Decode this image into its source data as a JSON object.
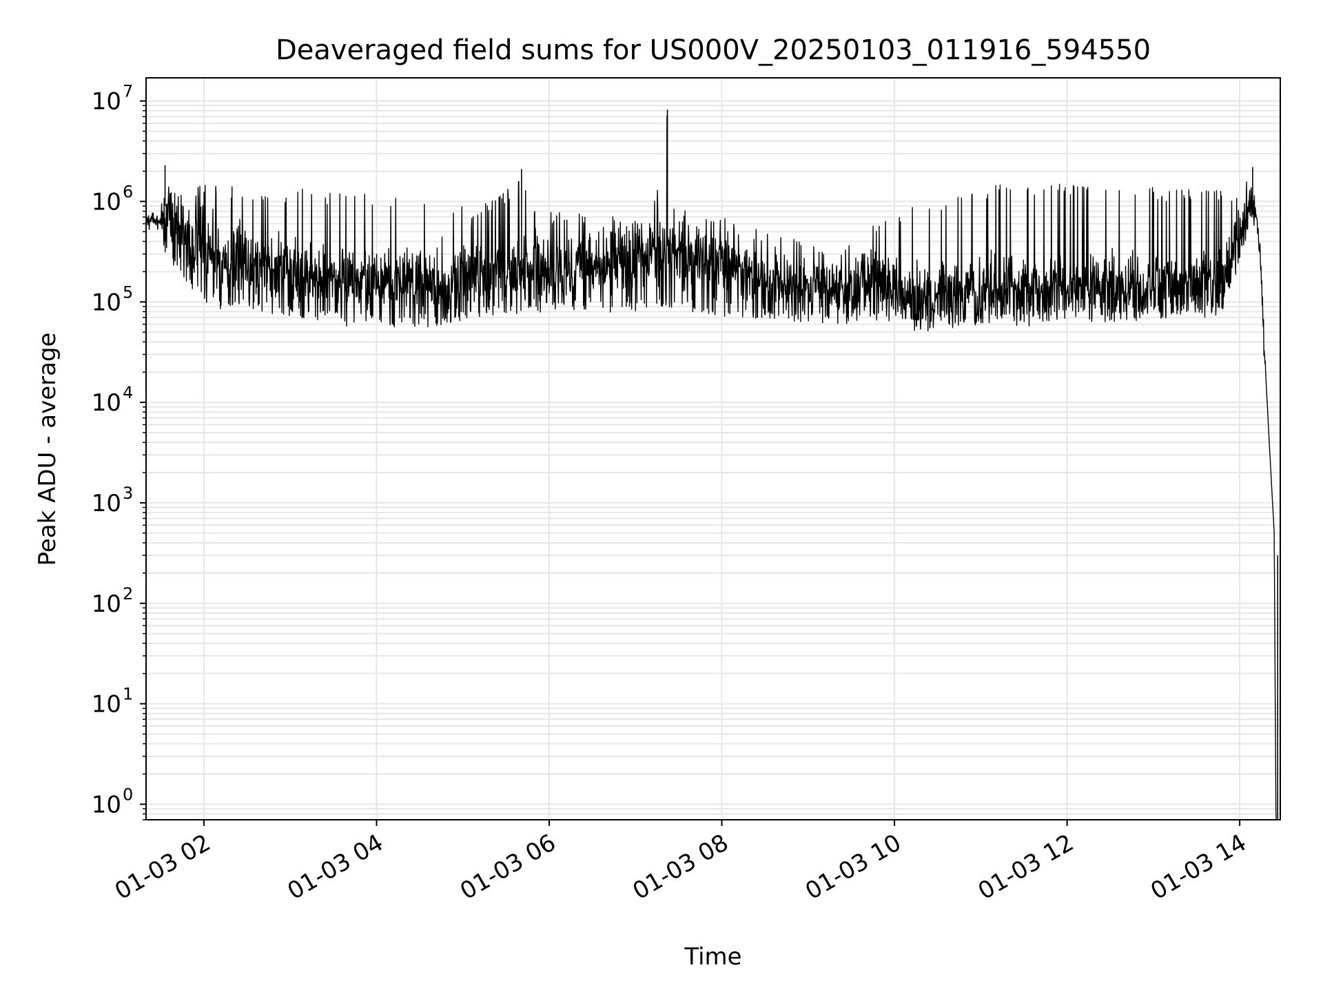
{
  "chart_data": {
    "type": "line",
    "title": "Deaveraged field sums for US000V_20250103_011916_594550",
    "xlabel": "Time",
    "ylabel": "Peak ADU - average",
    "yscale": "log",
    "ylim": [
      0.7,
      17000000
    ],
    "xlim_hours": [
      1.33,
      14.47
    ],
    "grid": true,
    "line_color": "#000000",
    "grid_color": "#e6e6e6",
    "x_ticks": [
      {
        "hour": 2,
        "label": "01-03 02"
      },
      {
        "hour": 4,
        "label": "01-03 04"
      },
      {
        "hour": 6,
        "label": "01-03 06"
      },
      {
        "hour": 8,
        "label": "01-03 08"
      },
      {
        "hour": 10,
        "label": "01-03 10"
      },
      {
        "hour": 12,
        "label": "01-03 12"
      },
      {
        "hour": 14,
        "label": "01-03 14"
      }
    ],
    "y_ticks": [
      {
        "value": 1,
        "base": "10",
        "exp": "0"
      },
      {
        "value": 10,
        "base": "10",
        "exp": "1"
      },
      {
        "value": 100,
        "base": "10",
        "exp": "2"
      },
      {
        "value": 1000,
        "base": "10",
        "exp": "3"
      },
      {
        "value": 10000,
        "base": "10",
        "exp": "4"
      },
      {
        "value": 100000,
        "base": "10",
        "exp": "5"
      },
      {
        "value": 1000000,
        "base": "10",
        "exp": "6"
      },
      {
        "value": 10000000,
        "base": "10",
        "exp": "7"
      }
    ],
    "series": [
      {
        "x_hours": [
          1.33,
          1.4,
          1.5,
          1.55,
          1.6,
          1.7,
          1.8,
          1.9,
          2.0,
          2.2,
          2.4,
          2.6,
          2.8,
          3.0,
          3.2,
          3.4,
          3.6,
          3.8,
          4.0,
          4.2,
          4.4,
          4.6,
          4.8,
          5.0,
          5.2,
          5.4,
          5.6,
          5.68,
          5.8,
          6.0,
          6.2,
          6.4,
          6.6,
          6.8,
          7.0,
          7.2,
          7.37,
          7.4,
          7.6,
          7.8,
          8.0,
          8.2,
          8.4,
          8.6,
          8.8,
          9.0,
          9.2,
          9.4,
          9.6,
          9.8,
          10.0,
          10.2,
          10.4,
          10.6,
          10.8,
          11.0,
          11.2,
          11.4,
          11.6,
          11.8,
          12.0,
          12.2,
          12.4,
          12.6,
          12.8,
          13.0,
          13.2,
          13.4,
          13.6,
          13.8,
          14.0,
          14.15,
          14.2,
          14.25,
          14.3,
          14.35,
          14.4,
          14.42,
          14.44
        ],
        "low": [
          500000,
          550000,
          500000,
          300000,
          250000,
          200000,
          150000,
          120000,
          100000,
          90000,
          85000,
          80000,
          75000,
          70000,
          68000,
          65000,
          62000,
          60000,
          58000,
          56000,
          55000,
          52000,
          60000,
          65000,
          70000,
          72000,
          75000,
          80000,
          78000,
          80000,
          82000,
          85000,
          80000,
          78000,
          80000,
          85000,
          90000,
          85000,
          80000,
          75000,
          72000,
          70000,
          68000,
          66000,
          64000,
          62000,
          60000,
          60000,
          62000,
          65000,
          60000,
          52000,
          50000,
          52000,
          55000,
          58000,
          60000,
          62000,
          63000,
          64000,
          65000,
          62000,
          60000,
          62000,
          64000,
          65000,
          68000,
          70000,
          70000,
          75000,
          250000,
          600000,
          500000,
          100000,
          10000,
          1000,
          300,
          0.7,
          0.7
        ],
        "mid": [
          600000,
          700000,
          650000,
          900000,
          800000,
          600000,
          450000,
          350000,
          300000,
          250000,
          230000,
          210000,
          190000,
          180000,
          170000,
          160000,
          150000,
          140000,
          130000,
          135000,
          140000,
          140000,
          150000,
          160000,
          170000,
          175000,
          190000,
          210000,
          190000,
          180000,
          190000,
          200000,
          230000,
          260000,
          300000,
          330000,
          360000,
          330000,
          300000,
          270000,
          240000,
          210000,
          180000,
          160000,
          150000,
          140000,
          130000,
          130000,
          140000,
          150000,
          120000,
          100000,
          95000,
          100000,
          110000,
          115000,
          120000,
          120000,
          120000,
          120000,
          125000,
          120000,
          120000,
          122000,
          125000,
          130000,
          135000,
          135000,
          135000,
          140000,
          500000,
          900000,
          700000,
          200000,
          20000,
          3000,
          500,
          0.7,
          0.7
        ],
        "high": [
          750000,
          800000,
          800000,
          2300000,
          1400000,
          1300000,
          1400000,
          1400000,
          1450000,
          1450000,
          1400000,
          1350000,
          1300000,
          1300000,
          1500000,
          1200000,
          1250000,
          1200000,
          1150000,
          1100000,
          1050000,
          1000000,
          950000,
          900000,
          900000,
          1100000,
          1500000,
          2100000,
          900000,
          800000,
          800000,
          750000,
          700000,
          750000,
          750000,
          800000,
          8200000,
          850000,
          800000,
          750000,
          700000,
          600000,
          550000,
          500000,
          450000,
          400000,
          380000,
          370000,
          500000,
          600000,
          700000,
          900000,
          1000000,
          1100000,
          1200000,
          1300000,
          1500000,
          1500000,
          1450000,
          1500000,
          1500000,
          1400000,
          1400000,
          1350000,
          1400000,
          1400000,
          1300000,
          1400000,
          1350000,
          1300000,
          1100000,
          2200000,
          800000,
          300000,
          30000,
          5000,
          800,
          0.7,
          0.7
        ]
      }
    ]
  }
}
